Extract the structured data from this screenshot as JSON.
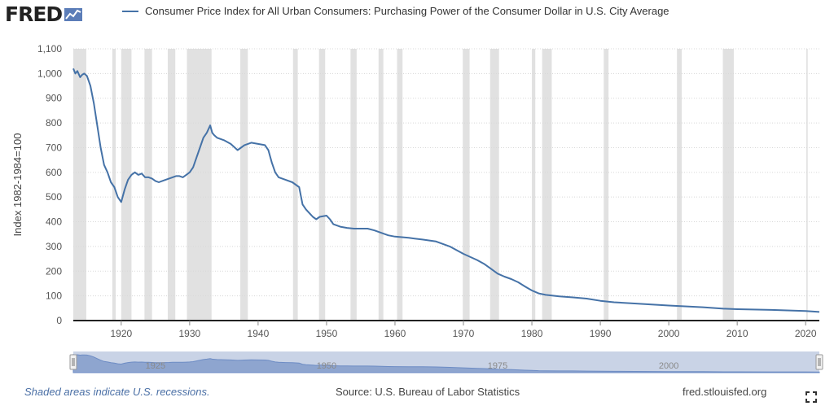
{
  "header": {
    "logo_text": "FRED",
    "logo_icon": "fred-chart-icon",
    "legend_label": "Consumer Price Index for All Urban Consumers: Purchasing Power of the Consumer Dollar in U.S. City Average"
  },
  "footer": {
    "recession_note": "Shaded areas indicate U.S. recessions.",
    "source": "Source: U.S. Bureau of Labor Statistics",
    "site": "fred.stlouisfed.org",
    "fullscreen_icon": "fullscreen-icon"
  },
  "colors": {
    "series": "#4572a7",
    "recession": "#e1e1e1",
    "grid": "#d8d8d8",
    "navigator_fill": "#c9d3e6",
    "navigator_area": "#8ea5cf"
  },
  "chart_data": {
    "type": "line",
    "title": "",
    "xlabel": "",
    "ylabel": "Index 1982-1984=100",
    "xlim": [
      1913.0,
      2022.0
    ],
    "ylim": [
      0,
      1100
    ],
    "y_ticks": [
      0,
      100,
      200,
      300,
      400,
      500,
      600,
      700,
      800,
      900,
      1000,
      1100
    ],
    "y_tick_labels": [
      "0",
      "100",
      "200",
      "300",
      "400",
      "500",
      "600",
      "700",
      "800",
      "900",
      "1,000",
      "1,100"
    ],
    "x_ticks": [
      1920,
      1930,
      1940,
      1950,
      1960,
      1970,
      1980,
      1990,
      2000,
      2010,
      2020
    ],
    "x_tick_labels": [
      "1920",
      "1930",
      "1940",
      "1950",
      "1960",
      "1970",
      "1980",
      "1990",
      "2000",
      "2010",
      "2020"
    ],
    "grid": true,
    "legend": "top",
    "recessions": [
      [
        1913.0,
        1914.9
      ],
      [
        1918.7,
        1919.2
      ],
      [
        1920.0,
        1921.5
      ],
      [
        1923.4,
        1924.5
      ],
      [
        1926.8,
        1927.9
      ],
      [
        1929.6,
        1933.2
      ],
      [
        1937.4,
        1938.5
      ],
      [
        1945.1,
        1945.8
      ],
      [
        1948.9,
        1949.8
      ],
      [
        1953.5,
        1954.4
      ],
      [
        1957.6,
        1958.3
      ],
      [
        1960.3,
        1961.1
      ],
      [
        1969.9,
        1970.9
      ],
      [
        1973.9,
        1975.2
      ],
      [
        1980.0,
        1980.5
      ],
      [
        1981.5,
        1982.9
      ],
      [
        1990.5,
        1991.2
      ],
      [
        2001.2,
        2001.9
      ],
      [
        2007.9,
        2009.5
      ],
      [
        2020.1,
        2020.3
      ]
    ],
    "series": [
      {
        "x": [
          1913.0,
          1913.3,
          1913.6,
          1914.0,
          1914.3,
          1914.6,
          1915.0,
          1915.5,
          1916.0,
          1916.5,
          1917.0,
          1917.5,
          1918.0,
          1918.5,
          1919.0,
          1919.5,
          1920.0,
          1920.5,
          1921.0,
          1921.5,
          1922.0,
          1922.5,
          1923.0,
          1923.5,
          1924.0,
          1924.5,
          1925.0,
          1925.5,
          1926.0,
          1926.5,
          1927.0,
          1927.5,
          1928.0,
          1928.5,
          1929.0,
          1929.5,
          1930.0,
          1930.5,
          1931.0,
          1931.5,
          1932.0,
          1932.5,
          1933.0,
          1933.3,
          1933.6,
          1934.0,
          1935.0,
          1936.0,
          1937.0,
          1937.5,
          1938.0,
          1939.0,
          1940.0,
          1941.0,
          1941.5,
          1942.0,
          1942.5,
          1943.0,
          1944.0,
          1945.0,
          1946.0,
          1946.5,
          1947.0,
          1948.0,
          1948.5,
          1949.0,
          1950.0,
          1950.5,
          1951.0,
          1952.0,
          1953.0,
          1954.0,
          1955.0,
          1956.0,
          1957.0,
          1958.0,
          1959.0,
          1960.0,
          1962.0,
          1964.0,
          1966.0,
          1968.0,
          1970.0,
          1972.0,
          1973.0,
          1974.0,
          1975.0,
          1976.0,
          1977.0,
          1978.0,
          1979.0,
          1980.0,
          1981.0,
          1982.0,
          1984.0,
          1986.0,
          1988.0,
          1990.0,
          1992.0,
          1995.0,
          2000.0,
          2005.0,
          2008.0,
          2010.0,
          2015.0,
          2020.0,
          2022.0
        ],
        "values": [
          1020,
          1000,
          1010,
          985,
          995,
          1000,
          990,
          950,
          880,
          790,
          700,
          630,
          600,
          560,
          540,
          500,
          480,
          530,
          570,
          590,
          600,
          590,
          595,
          580,
          580,
          575,
          565,
          560,
          565,
          570,
          575,
          580,
          585,
          585,
          580,
          590,
          600,
          620,
          660,
          700,
          740,
          760,
          790,
          760,
          750,
          740,
          730,
          715,
          690,
          700,
          710,
          720,
          715,
          710,
          690,
          640,
          600,
          580,
          570,
          560,
          540,
          470,
          450,
          420,
          410,
          420,
          425,
          410,
          390,
          380,
          375,
          372,
          372,
          372,
          365,
          355,
          345,
          340,
          335,
          328,
          320,
          300,
          270,
          245,
          230,
          210,
          190,
          178,
          168,
          155,
          138,
          122,
          110,
          104,
          98,
          94,
          89,
          80,
          74,
          69,
          61,
          54,
          48,
          46,
          43,
          39,
          35
        ]
      }
    ],
    "navigator": {
      "tick_labels": [
        "1925",
        "1950",
        "1975",
        "2000"
      ],
      "tick_years": [
        1925,
        1950,
        1975,
        2000
      ]
    }
  }
}
